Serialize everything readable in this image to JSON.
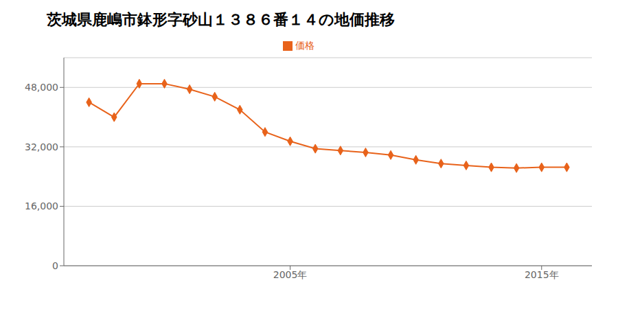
{
  "chart_data": {
    "type": "line",
    "title": "茨城県鹿嶋市鉢形字砂山１３８６番１４の地価推移",
    "x": [
      1997,
      1998,
      1999,
      2000,
      2001,
      2002,
      2003,
      2004,
      2005,
      2006,
      2007,
      2008,
      2009,
      2010,
      2011,
      2012,
      2013,
      2014,
      2015,
      2016
    ],
    "series": [
      {
        "name": "価格",
        "color": "#e8621a",
        "marker": "diamond",
        "values": [
          44000,
          40000,
          49000,
          49000,
          47500,
          45500,
          42000,
          36000,
          33500,
          31500,
          31000,
          30500,
          29800,
          28500,
          27500,
          27000,
          26500,
          26300,
          26500,
          26500
        ]
      }
    ],
    "xlim": [
      1996,
      2017
    ],
    "xticks": [
      {
        "value": 2005,
        "label": "2005年"
      },
      {
        "value": 2015,
        "label": "2015年"
      }
    ],
    "ylim": [
      0,
      56000
    ],
    "yticks": [
      0,
      {
        "value": 16000,
        "label": "16,000"
      },
      {
        "value": 32000,
        "label": "32,000"
      },
      {
        "value": 48000,
        "label": "48,000"
      }
    ],
    "grid": "y",
    "legend": "top"
  }
}
